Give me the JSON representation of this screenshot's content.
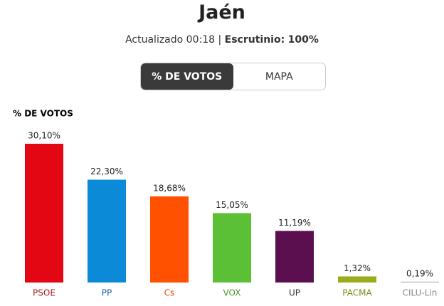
{
  "header": {
    "title": "Jaén",
    "updated": "Actualizado 00:18",
    "separator": "|",
    "scrutiny_label": "Escrutinio:",
    "scrutiny_value": "100%"
  },
  "tabs": [
    "% DE VOTOS",
    "MAPA"
  ],
  "chart_data": {
    "type": "bar",
    "y_label": "% DE VOTOS",
    "categories": [
      "PSOE",
      "PP",
      "Cs",
      "VOX",
      "UP",
      "PACMA",
      "CILU-Lin"
    ],
    "values": [
      30.1,
      22.3,
      18.68,
      15.05,
      11.19,
      1.32,
      0.19
    ],
    "value_labels": [
      "30,10%",
      "22,30%",
      "18,68%",
      "15,05%",
      "11,19%",
      "1,32%",
      "0,19%"
    ],
    "colors": [
      "#e30613",
      "#0b8ad8",
      "#ff5100",
      "#5bc035",
      "#5c0f4f",
      "#9aab1c",
      "#b8b8b8"
    ],
    "label_colors": [
      "#9b1b1b",
      "#1d5f9e",
      "#e24a00",
      "#4b9b2a",
      "#333333",
      "#7a8a14",
      "#888888"
    ]
  }
}
